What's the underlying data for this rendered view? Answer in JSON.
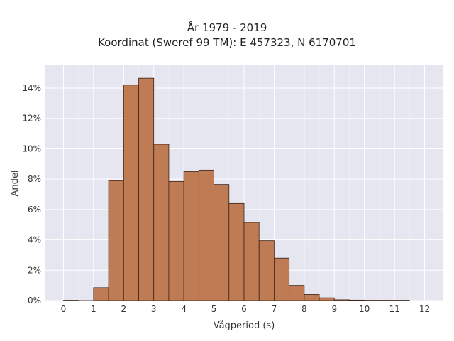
{
  "chart_data": {
    "type": "bar",
    "title": "År 1979 - 2019",
    "subtitle": "Koordinat (Sweref 99 TM): E 457323, N 6170701",
    "xlabel": "Vågperiod (s)",
    "ylabel": "Andel",
    "xlim": [
      -0.6,
      12.6
    ],
    "ylim": [
      0,
      15.5
    ],
    "x_ticks": [
      0,
      1,
      2,
      3,
      4,
      5,
      6,
      7,
      8,
      9,
      10,
      11,
      12
    ],
    "y_ticks": [
      0,
      2,
      4,
      6,
      8,
      10,
      12,
      14
    ],
    "y_tick_labels": [
      "0%",
      "2%",
      "4%",
      "6%",
      "8%",
      "10%",
      "12%",
      "14%"
    ],
    "bin_width": 0.5,
    "bins": [
      {
        "x0": 0.0,
        "value": 0.02
      },
      {
        "x0": 0.5,
        "value": 0.0
      },
      {
        "x0": 1.0,
        "value": 0.85
      },
      {
        "x0": 1.5,
        "value": 7.9
      },
      {
        "x0": 2.0,
        "value": 14.2
      },
      {
        "x0": 2.5,
        "value": 14.65
      },
      {
        "x0": 3.0,
        "value": 10.3
      },
      {
        "x0": 3.5,
        "value": 7.85
      },
      {
        "x0": 4.0,
        "value": 8.5
      },
      {
        "x0": 4.5,
        "value": 8.6
      },
      {
        "x0": 5.0,
        "value": 7.65
      },
      {
        "x0": 5.5,
        "value": 6.4
      },
      {
        "x0": 6.0,
        "value": 5.15
      },
      {
        "x0": 6.5,
        "value": 3.95
      },
      {
        "x0": 7.0,
        "value": 2.8
      },
      {
        "x0": 7.5,
        "value": 1.0
      },
      {
        "x0": 8.0,
        "value": 0.4
      },
      {
        "x0": 8.5,
        "value": 0.18
      },
      {
        "x0": 9.0,
        "value": 0.05
      },
      {
        "x0": 9.5,
        "value": 0.03
      },
      {
        "x0": 10.0,
        "value": 0.02
      },
      {
        "x0": 10.5,
        "value": 0.02
      },
      {
        "x0": 11.0,
        "value": 0.02
      }
    ],
    "grid": true,
    "colors": {
      "bar_fill": "#bf7b54",
      "bar_edge": "#3a2418",
      "plot_background": "#e5e6ef",
      "grid": "#ffffff"
    }
  }
}
